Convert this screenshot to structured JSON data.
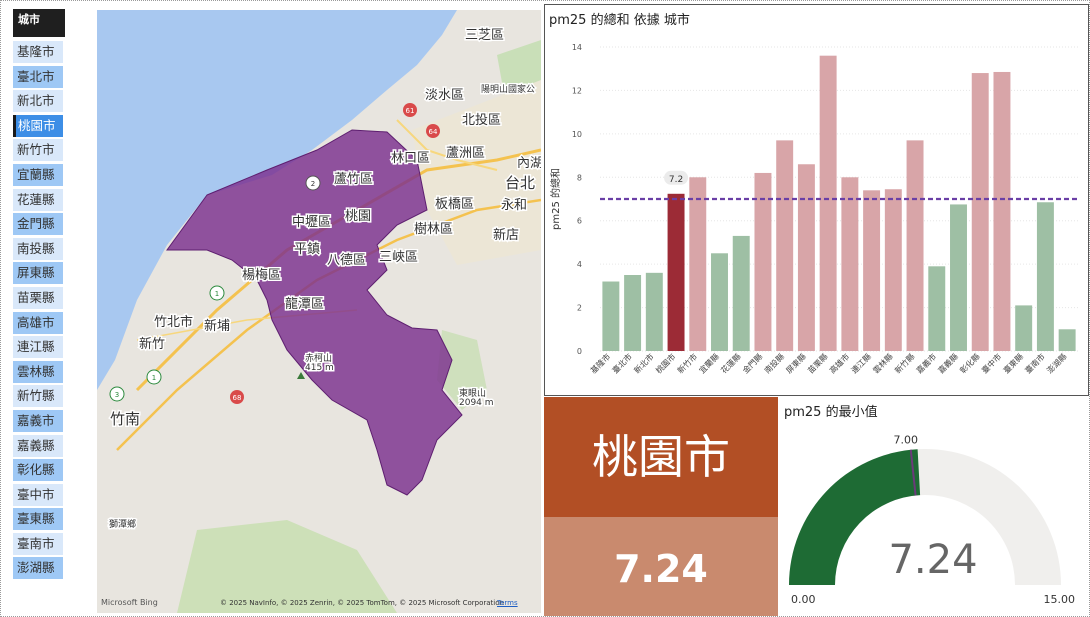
{
  "slicer": {
    "header": "城市",
    "selected_index": 3,
    "items": [
      "基隆市",
      "臺北市",
      "新北市",
      "桃園市",
      "新竹市",
      "宜蘭縣",
      "花蓮縣",
      "金門縣",
      "南投縣",
      "屏東縣",
      "苗栗縣",
      "高雄市",
      "連江縣",
      "雲林縣",
      "新竹縣",
      "嘉義市",
      "嘉義縣",
      "彰化縣",
      "臺中市",
      "臺東縣",
      "臺南市",
      "澎湖縣"
    ]
  },
  "map": {
    "labels": {
      "sanzhi": "三芝區",
      "tamsui": "淡水區",
      "yangming": "陽明山國家公",
      "beitou": "北投區",
      "neihu": "內湖",
      "taibei": "台北",
      "linkou": "林口區",
      "luzhou": "蘆洲區",
      "luzhu": "蘆竹區",
      "yonghe": "永和",
      "zhongli": "中壢區",
      "taoyuan": "桃園",
      "banqiao": "板橋區",
      "shulin": "樹林區",
      "xindian": "新店",
      "pingzhen": "平鎮",
      "bade": "八德區",
      "sanxia": "三峽區",
      "yangmei": "楊梅區",
      "longtan": "龍潭區",
      "zhubei": "竹北市",
      "xinpu": "新埔",
      "hsinchu": "新竹",
      "chimushan": "赤柯山",
      "chimushan_elev": "415 m",
      "mt": "東眼山",
      "mt_elev": "2094 m",
      "zhunan": "竹南",
      "shitan": "獅潭鄉"
    },
    "highway_shields": [
      "61",
      "64",
      "2",
      "1",
      "3",
      "68",
      "1"
    ],
    "region_color": "#7b2f8f",
    "logo_text": "Microsoft Bing",
    "copyright": "© 2025 NavInfo, © 2025 Zenrin, © 2025 TomTom, © 2025 Microsoft Corporation",
    "terms": "Terms"
  },
  "bar_chart": {
    "title": "pm25 的總和 依據 城市",
    "selected_label": "7.2"
  },
  "chart_data": {
    "type": "bar",
    "title": "pm25 的總和 依據 城市",
    "xlabel": "",
    "ylabel": "pm25 的總和",
    "ylim": [
      0,
      14
    ],
    "yticks": [
      0,
      2,
      4,
      6,
      8,
      10,
      12,
      14
    ],
    "grid": true,
    "average_line": 7.0,
    "categories": [
      "基隆市",
      "臺北市",
      "新北市",
      "桃園市",
      "新竹市",
      "宜蘭縣",
      "花蓮縣",
      "金門縣",
      "南投縣",
      "屏東縣",
      "苗栗縣",
      "高雄市",
      "連江縣",
      "雲林縣",
      "新竹縣",
      "嘉義市",
      "嘉義縣",
      "彰化縣",
      "臺中市",
      "臺東縣",
      "臺南市",
      "澎湖縣"
    ],
    "values": [
      3.2,
      3.5,
      3.6,
      7.24,
      8.0,
      4.5,
      5.3,
      8.2,
      9.7,
      8.6,
      13.6,
      8.0,
      7.4,
      7.45,
      9.7,
      3.9,
      6.75,
      12.8,
      12.85,
      2.1,
      6.85,
      1.0
    ],
    "colors": {
      "above": "#d8a5a8",
      "below": "#9ebfa4",
      "selected": "#9c2b36",
      "average_line": "#6a3fa6"
    }
  },
  "card": {
    "city": "桃園市",
    "value": "7.24"
  },
  "gauge": {
    "title": "pm25 的最小值",
    "min_label": "0.00",
    "max_label": "15.00",
    "target_label": "7.00",
    "value_label": "7.24",
    "min": 0,
    "max": 15,
    "value": 7.24,
    "target": 7.0,
    "fill_color": "#1e6b34",
    "track_color": "#f0efed",
    "target_color": "#6b3a7a"
  }
}
